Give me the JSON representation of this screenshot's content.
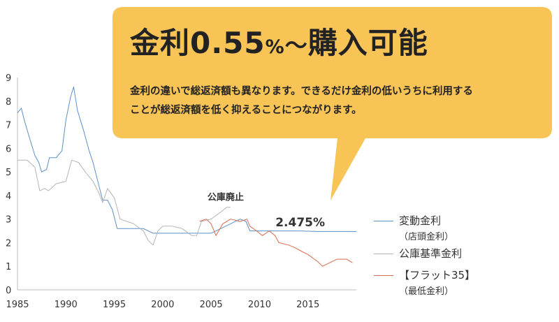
{
  "bubble": {
    "title_main": "金利0.55",
    "title_pct": "%",
    "title_wave": "～",
    "title_tail": "購入可能",
    "body_line1": "金利の違いで総返済額も異なります。できるだけ金利の低いうちに利用する",
    "body_line2": "ことが総返済額を低く抑えることにつながります。",
    "fill": "#f7c455"
  },
  "chart_data": {
    "type": "line",
    "xlim": [
      1985,
      2020
    ],
    "ylim": [
      0,
      9
    ],
    "xticks": [
      "1985",
      "1990",
      "1995",
      "2000",
      "2005",
      "2010",
      "2015"
    ],
    "yticks": [
      "0",
      "1",
      "2",
      "3",
      "4",
      "5",
      "6",
      "7",
      "8",
      "9"
    ],
    "annotations": [
      {
        "text": "公庫廃止",
        "x": 2006.5,
        "y": 3.8
      },
      {
        "text": "2.475%",
        "x": 2014.2,
        "y": 2.7
      }
    ],
    "legend_placement": "right",
    "series": [
      {
        "name": "変動金利",
        "subname": "（店頭金利）",
        "color": "#5b8fc7",
        "points": [
          [
            1985,
            7.5
          ],
          [
            1985.4,
            7.7
          ],
          [
            1985.7,
            7.2
          ],
          [
            1986.2,
            6.5
          ],
          [
            1986.8,
            5.7
          ],
          [
            1987.2,
            5.4
          ],
          [
            1987.5,
            5.0
          ],
          [
            1988,
            5.1
          ],
          [
            1988.3,
            5.6
          ],
          [
            1989,
            5.6
          ],
          [
            1989.6,
            5.9
          ],
          [
            1990,
            7.2
          ],
          [
            1990.5,
            8.2
          ],
          [
            1990.8,
            8.6
          ],
          [
            1991.2,
            7.6
          ],
          [
            1991.8,
            6.8
          ],
          [
            1992.4,
            5.9
          ],
          [
            1992.8,
            5.4
          ],
          [
            1993.3,
            4.6
          ],
          [
            1993.8,
            3.8
          ],
          [
            1994.3,
            3.8
          ],
          [
            1994.8,
            3.4
          ],
          [
            1995.3,
            2.6
          ],
          [
            1996,
            2.6
          ],
          [
            1997,
            2.6
          ],
          [
            1998,
            2.6
          ],
          [
            1999,
            2.4
          ],
          [
            2000,
            2.4
          ],
          [
            2001,
            2.4
          ],
          [
            2002,
            2.4
          ],
          [
            2003,
            2.4
          ],
          [
            2004,
            2.4
          ],
          [
            2005,
            2.4
          ],
          [
            2006,
            2.6
          ],
          [
            2007,
            2.8
          ],
          [
            2008,
            3.0
          ],
          [
            2008.6,
            2.9
          ],
          [
            2009,
            2.5
          ],
          [
            2010,
            2.5
          ],
          [
            2012,
            2.5
          ],
          [
            2014,
            2.5
          ],
          [
            2016,
            2.475
          ],
          [
            2018,
            2.475
          ],
          [
            2020,
            2.475
          ]
        ]
      },
      {
        "name": "公庫基準金利",
        "subname": "",
        "color": "#b5b5b5",
        "points": [
          [
            1985,
            5.5
          ],
          [
            1986,
            5.5
          ],
          [
            1986.8,
            5.2
          ],
          [
            1987.3,
            4.2
          ],
          [
            1987.8,
            4.3
          ],
          [
            1988.2,
            4.2
          ],
          [
            1989,
            4.5
          ],
          [
            1990,
            4.6
          ],
          [
            1990.6,
            5.5
          ],
          [
            1991.3,
            5.4
          ],
          [
            1992,
            5.0
          ],
          [
            1992.8,
            4.6
          ],
          [
            1993.3,
            4.2
          ],
          [
            1993.8,
            3.7
          ],
          [
            1994.3,
            4.3
          ],
          [
            1995,
            3.9
          ],
          [
            1995.6,
            3.0
          ],
          [
            1996.3,
            2.9
          ],
          [
            1997,
            2.8
          ],
          [
            1998,
            2.5
          ],
          [
            1998.5,
            2.1
          ],
          [
            1999,
            1.9
          ],
          [
            1999.5,
            2.5
          ],
          [
            2000,
            2.7
          ],
          [
            2001,
            2.7
          ],
          [
            2002,
            2.6
          ],
          [
            2003,
            2.3
          ],
          [
            2003.5,
            2.3
          ],
          [
            2004,
            2.9
          ],
          [
            2005,
            3.0
          ],
          [
            2006,
            3.3
          ],
          [
            2006.6,
            3.5
          ],
          [
            2007,
            3.5
          ]
        ]
      },
      {
        "name": "【フラット35】",
        "subname": "（最低金利）",
        "color": "#d66a4f",
        "points": [
          [
            2003.8,
            2.9
          ],
          [
            2004.5,
            3.0
          ],
          [
            2005,
            2.8
          ],
          [
            2005.5,
            2.3
          ],
          [
            2006.2,
            2.8
          ],
          [
            2007,
            3.0
          ],
          [
            2008,
            2.9
          ],
          [
            2008.7,
            3.0
          ],
          [
            2009,
            2.7
          ],
          [
            2009.7,
            2.5
          ],
          [
            2010.3,
            2.3
          ],
          [
            2011,
            2.5
          ],
          [
            2011.6,
            2.3
          ],
          [
            2012,
            2.0
          ],
          [
            2013,
            1.9
          ],
          [
            2013.6,
            1.8
          ],
          [
            2014.5,
            1.6
          ],
          [
            2015,
            1.5
          ],
          [
            2016,
            1.2
          ],
          [
            2016.5,
            1.0
          ],
          [
            2017,
            1.1
          ],
          [
            2018,
            1.3
          ],
          [
            2019,
            1.3
          ],
          [
            2019.6,
            1.15
          ]
        ]
      }
    ]
  }
}
